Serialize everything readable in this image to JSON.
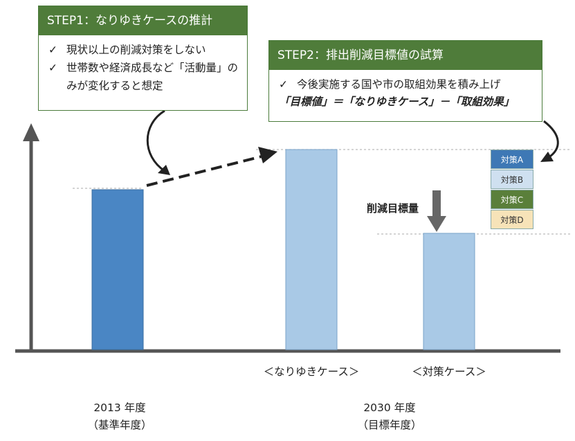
{
  "step1": {
    "title": "STEP1：なりゆきケースの推計",
    "check_mark": "✓",
    "items": [
      "現状以上の削減対策をしない",
      "世帯数や経済成長など「活動量」のみが変化すると想定"
    ]
  },
  "step2": {
    "title": "STEP2：排出削減目標値の試算",
    "check_mark": "✓",
    "items": [
      "今後実施する国や市の取組効果を積み上げ"
    ],
    "formula": "「目標値」＝「なりゆきケース」－「取組効果」"
  },
  "bars": [
    {
      "id": "base",
      "relative_height": 0.8,
      "color": "#4a86c4"
    },
    {
      "id": "bau",
      "relative_height": 1.0,
      "color": "#a9c9e6",
      "label": "＜なりゆきケース＞"
    },
    {
      "id": "measure",
      "relative_height": 0.58,
      "color": "#a9c9e6",
      "label": "＜対策ケース＞"
    }
  ],
  "reduction_label": "削減目標量",
  "measures": [
    {
      "label": "対策A",
      "color": "#3e78b5",
      "text_color": "#ffffff"
    },
    {
      "label": "対策B",
      "color": "#cfe0f0",
      "text_color": "#333333"
    },
    {
      "label": "対策C",
      "color": "#5a7f3a",
      "text_color": "#ffffff"
    },
    {
      "label": "対策D",
      "color": "#f7e3b8",
      "text_color": "#333333"
    }
  ],
  "x_labels": [
    {
      "year": "2013 年度",
      "note": "（基準年度）"
    },
    {
      "year": "2030 年度",
      "note": "（目標年度）"
    }
  ]
}
